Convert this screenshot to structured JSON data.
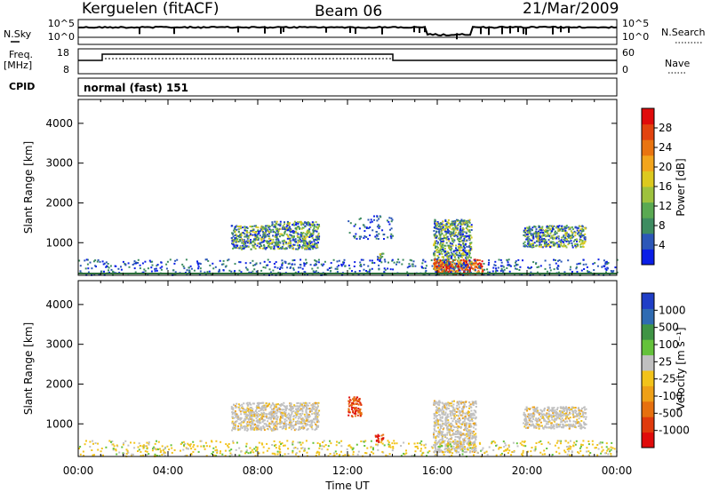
{
  "header": {
    "station": "Kerguelen (fitACF)",
    "beam": "Beam 06",
    "date": "21/Mar/2009"
  },
  "side_labels": {
    "nsky": "N.Sky",
    "freq": "Freq.",
    "freq_unit": "[MHz]",
    "cpid": "CPID",
    "nsearch": "N.Search",
    "nave": "Nave"
  },
  "cpid_text": "normal (fast) 151",
  "noise_panel": {
    "left_ticks": [
      {
        "label": "10^5",
        "value": 5
      },
      {
        "label": "10^0",
        "value": 0
      }
    ],
    "right_ticks": [
      {
        "label": "10^5",
        "value": 5
      },
      {
        "label": "10^0",
        "value": 0
      }
    ]
  },
  "freq_panel": {
    "left_ticks": [
      {
        "label": "18",
        "value": 18
      },
      {
        "label": "8",
        "value": 8
      }
    ],
    "right_ticks": [
      {
        "label": "60",
        "value": 60
      },
      {
        "label": "0",
        "value": 0
      }
    ]
  },
  "chart_data": [
    {
      "type": "heatmap",
      "name": "power",
      "xlabel": "",
      "ylabel": "Slant Range [km]",
      "xlim": [
        0,
        24
      ],
      "ylim": [
        180,
        4600
      ],
      "y_ticks": [
        1000,
        2000,
        3000,
        4000
      ],
      "colorbar": {
        "label": "Power [dB]",
        "ticks": [
          "4",
          "8",
          "12",
          "16",
          "20",
          "24",
          "28"
        ],
        "colors": [
          "#0a1ee6",
          "#2c57b8",
          "#3e8c61",
          "#5aa952",
          "#9ec23e",
          "#dcc91f",
          "#f2a51d",
          "#e97410",
          "#e2430f",
          "#e00b0b"
        ]
      },
      "echo_regions": [
        {
          "t0": 6.8,
          "t1": 8.6,
          "r0": 850,
          "r1": 1450,
          "level": "mid"
        },
        {
          "t0": 8.6,
          "t1": 10.7,
          "r0": 850,
          "r1": 1550,
          "level": "mid"
        },
        {
          "t0": 12.0,
          "t1": 14.0,
          "r0": 1100,
          "r1": 1700,
          "level": "low"
        },
        {
          "t0": 13.3,
          "t1": 13.6,
          "r0": 550,
          "r1": 750,
          "level": "mid"
        },
        {
          "t0": 15.8,
          "t1": 17.5,
          "r0": 300,
          "r1": 1600,
          "level": "mid"
        },
        {
          "t0": 15.8,
          "t1": 18.0,
          "r0": 220,
          "r1": 600,
          "level": "high"
        },
        {
          "t0": 18.5,
          "t1": 19.6,
          "r0": 300,
          "r1": 600,
          "level": "low"
        },
        {
          "t0": 19.8,
          "t1": 22.6,
          "r0": 900,
          "r1": 1450,
          "level": "mid"
        },
        {
          "t0": 0.0,
          "t1": 24.0,
          "r0": 200,
          "r1": 600,
          "level": "low"
        }
      ]
    },
    {
      "type": "heatmap",
      "name": "velocity",
      "xlabel": "Time UT",
      "ylabel": "Slant Range [km]",
      "xlim": [
        0,
        24
      ],
      "ylim": [
        180,
        4600
      ],
      "x_ticks": [
        "00:00",
        "04:00",
        "08:00",
        "12:00",
        "16:00",
        "20:00",
        "00:00"
      ],
      "y_ticks": [
        1000,
        2000,
        3000,
        4000
      ],
      "colorbar": {
        "label": "Velocity [m s⁻¹]",
        "ticks": [
          "1000",
          "500",
          "100",
          "25",
          "-25",
          "-100",
          "-500",
          "-1000"
        ],
        "colors": [
          "#1f3ec7",
          "#2f6bb2",
          "#3f9445",
          "#64c23a",
          "#c0c0c0",
          "#f2c31a",
          "#eea017",
          "#e6700f",
          "#e03a0c",
          "#e00b0b"
        ]
      },
      "echo_regions": [
        {
          "t0": 6.8,
          "t1": 10.7,
          "r0": 850,
          "r1": 1550,
          "level": "grey"
        },
        {
          "t0": 12.0,
          "t1": 12.6,
          "r0": 1200,
          "r1": 1700,
          "level": "neg"
        },
        {
          "t0": 13.2,
          "t1": 13.6,
          "r0": 550,
          "r1": 750,
          "level": "neg"
        },
        {
          "t0": 15.8,
          "t1": 17.7,
          "r0": 300,
          "r1": 1600,
          "level": "grey"
        },
        {
          "t0": 19.8,
          "t1": 22.6,
          "r0": 900,
          "r1": 1450,
          "level": "grey"
        },
        {
          "t0": 0.0,
          "t1": 24.0,
          "r0": 200,
          "r1": 600,
          "level": "weak"
        }
      ]
    }
  ]
}
